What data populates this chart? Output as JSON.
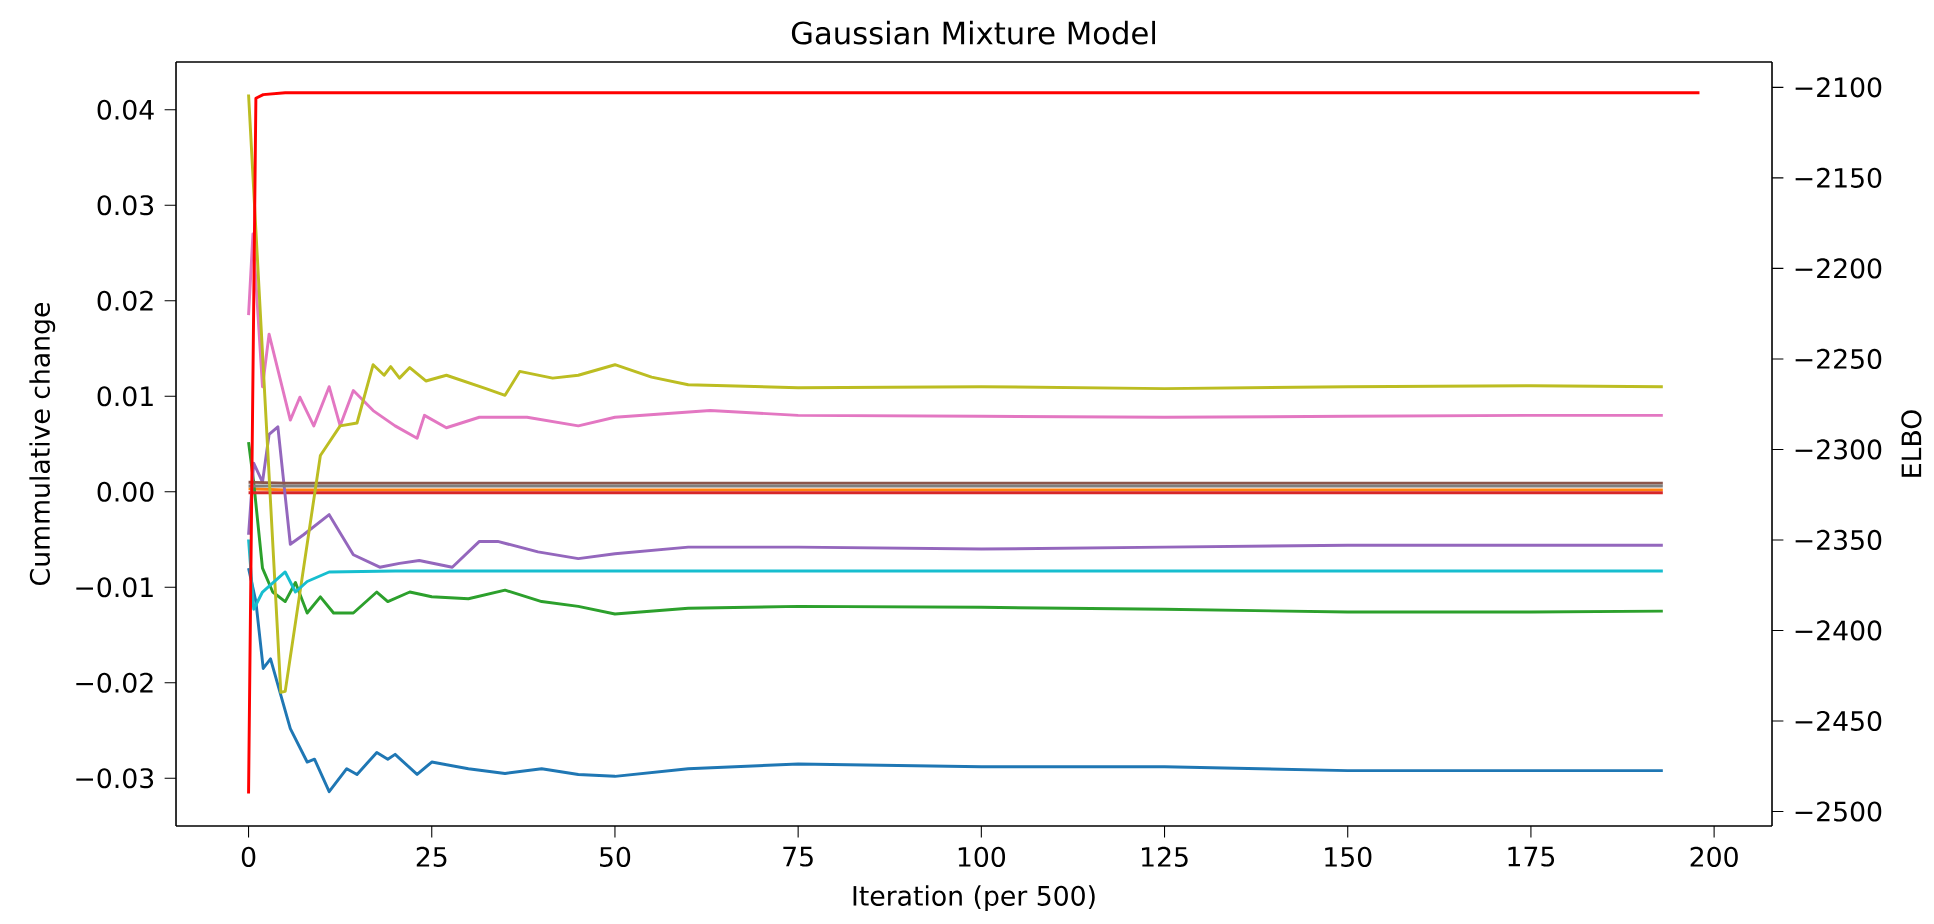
{
  "chart_data": {
    "type": "line",
    "title": "Gaussian Mixture Model",
    "xlabel": "Iteration (per 500)",
    "ylabel": "Cummulative change",
    "y2label": "ELBO",
    "xlim": [
      -9.9,
      207.9
    ],
    "xticks": [
      0,
      25,
      50,
      75,
      100,
      125,
      150,
      175,
      200
    ],
    "ylim": [
      -0.035,
      0.045
    ],
    "yticks": [
      {
        "value": -0.03,
        "label": "−0.03"
      },
      {
        "value": -0.02,
        "label": "−0.02"
      },
      {
        "value": -0.01,
        "label": "−0.01"
      },
      {
        "value": 0,
        "label": "0.00"
      },
      {
        "value": 0.01,
        "label": "0.01"
      },
      {
        "value": 0.02,
        "label": "0.02"
      },
      {
        "value": 0.03,
        "label": "0.03"
      },
      {
        "value": 0.04,
        "label": "0.04"
      }
    ],
    "y2lim": [
      -2508,
      -2086
    ],
    "y2ticks": [
      {
        "value": -2500,
        "label": "−2500"
      },
      {
        "value": -2450,
        "label": "−2450"
      },
      {
        "value": -2400,
        "label": "−2400"
      },
      {
        "value": -2350,
        "label": "−2350"
      },
      {
        "value": -2300,
        "label": "−2300"
      },
      {
        "value": -2250,
        "label": "−2250"
      },
      {
        "value": -2200,
        "label": "−2200"
      },
      {
        "value": -2150,
        "label": "−2150"
      },
      {
        "value": -2100,
        "label": "−2100"
      }
    ],
    "grid": false,
    "marker": "none",
    "line_style": "solid",
    "series": [
      {
        "color": "#1f77b4",
        "x": [
          0,
          1,
          2,
          3,
          4.4,
          5.7,
          8,
          9,
          11,
          13.4,
          14.8,
          17.5,
          19,
          20,
          23,
          25,
          30,
          35,
          40,
          45,
          50,
          60,
          75,
          100,
          125,
          150,
          175,
          193
        ],
        "values": [
          -0.008,
          -0.0115,
          -0.0185,
          -0.0175,
          -0.0213,
          -0.0248,
          -0.0283,
          -0.028,
          -0.0314,
          -0.029,
          -0.0296,
          -0.0273,
          -0.028,
          -0.0275,
          -0.0296,
          -0.0283,
          -0.029,
          -0.0295,
          -0.029,
          -0.0296,
          -0.0298,
          -0.029,
          -0.0285,
          -0.0288,
          -0.0288,
          -0.0292,
          -0.0292,
          -0.0292
        ]
      },
      {
        "color": "#ff7f0e",
        "x": [
          0,
          5,
          20,
          50,
          100,
          150,
          193
        ],
        "values": [
          0.0003,
          0.0002,
          0.0002,
          0.0002,
          0.0002,
          0.0002,
          0.0002
        ]
      },
      {
        "color": "#2ca02c",
        "x": [
          0,
          0.7,
          1.9,
          3.3,
          5,
          6.4,
          8,
          9.8,
          11.6,
          14.3,
          17.5,
          19,
          22,
          25,
          30,
          35,
          40,
          45,
          50,
          60,
          75,
          100,
          125,
          150,
          175,
          193
        ],
        "values": [
          0.0052,
          0.001,
          -0.008,
          -0.0105,
          -0.0115,
          -0.0095,
          -0.0127,
          -0.011,
          -0.0127,
          -0.0127,
          -0.0105,
          -0.0115,
          -0.0105,
          -0.011,
          -0.0112,
          -0.0103,
          -0.0115,
          -0.012,
          -0.0128,
          -0.0122,
          -0.012,
          -0.0121,
          -0.0123,
          -0.0126,
          -0.0126,
          -0.0125
        ]
      },
      {
        "color": "#d62728",
        "x": [
          0,
          5,
          20,
          50,
          100,
          150,
          193
        ],
        "values": [
          -0.0001,
          -0.0001,
          -0.0001,
          -0.0001,
          -0.0001,
          -0.0001,
          -0.0001
        ]
      },
      {
        "color": "#9467bd",
        "x": [
          0,
          0.7,
          1.9,
          2.8,
          4,
          5.7,
          7.5,
          11,
          14.3,
          17.9,
          20.6,
          23.3,
          27.8,
          31.5,
          34,
          39.5,
          45,
          50,
          60,
          75,
          100,
          125,
          150,
          175,
          193
        ],
        "values": [
          -0.0045,
          0.003,
          0.001,
          0.006,
          0.0068,
          -0.0055,
          -0.0045,
          -0.0024,
          -0.0066,
          -0.0079,
          -0.0075,
          -0.0072,
          -0.0079,
          -0.0052,
          -0.0052,
          -0.0063,
          -0.007,
          -0.0065,
          -0.0058,
          -0.0058,
          -0.006,
          -0.0058,
          -0.0056,
          -0.0056,
          -0.0056
        ]
      },
      {
        "color": "#8c564b",
        "x": [
          0,
          5,
          20,
          50,
          100,
          150,
          193
        ],
        "values": [
          0.001,
          0.0009,
          0.0009,
          0.0009,
          0.0009,
          0.0009,
          0.0009
        ]
      },
      {
        "color": "#e377c2",
        "x": [
          0,
          0.6,
          1.9,
          2.8,
          5.7,
          7,
          8.9,
          11,
          12.5,
          14.3,
          17,
          20,
          23,
          24,
          27,
          31.5,
          38,
          45,
          50,
          63,
          75,
          100,
          125,
          150,
          175,
          193
        ],
        "values": [
          0.0185,
          0.027,
          0.011,
          0.0165,
          0.0075,
          0.0099,
          0.0069,
          0.011,
          0.0069,
          0.0106,
          0.0085,
          0.0069,
          0.0056,
          0.008,
          0.0067,
          0.0078,
          0.0078,
          0.0069,
          0.0078,
          0.0085,
          0.008,
          0.0079,
          0.0078,
          0.0079,
          0.008,
          0.008
        ]
      },
      {
        "color": "#7f7f7f",
        "x": [
          0,
          5,
          20,
          50,
          100,
          150,
          193
        ],
        "values": [
          0.0006,
          0.0006,
          0.0006,
          0.0006,
          0.0006,
          0.0006,
          0.0006
        ]
      },
      {
        "color": "#bcbd22",
        "x": [
          0,
          4.4,
          5,
          9.8,
          12.5,
          14.8,
          17,
          18.5,
          19.4,
          20.6,
          22,
          24.2,
          27,
          32.4,
          35,
          37,
          41.5,
          45,
          50,
          55,
          60,
          75,
          100,
          125,
          150,
          175,
          193
        ],
        "values": [
          0.0416,
          -0.021,
          -0.0209,
          0.0038,
          0.0069,
          0.0072,
          0.0133,
          0.0122,
          0.0131,
          0.0119,
          0.013,
          0.0116,
          0.0122,
          0.0108,
          0.0101,
          0.0126,
          0.0119,
          0.0122,
          0.0133,
          0.012,
          0.0112,
          0.0109,
          0.011,
          0.0108,
          0.011,
          0.0111,
          0.011
        ]
      },
      {
        "color": "#17becf",
        "x": [
          0,
          0.7,
          1.9,
          5,
          6.4,
          8,
          11,
          20,
          50,
          100,
          150,
          193
        ],
        "values": [
          -0.005,
          -0.0123,
          -0.0105,
          -0.0084,
          -0.0105,
          -0.0094,
          -0.0084,
          -0.0083,
          -0.0083,
          -0.0083,
          -0.0083,
          -0.0083
        ]
      },
      {
        "color": "#ff0000",
        "axis": "y2",
        "x": [
          0,
          1,
          2,
          5,
          198
        ],
        "values": [
          -2490,
          -2106,
          -2104,
          -2103,
          -2103
        ]
      }
    ]
  }
}
